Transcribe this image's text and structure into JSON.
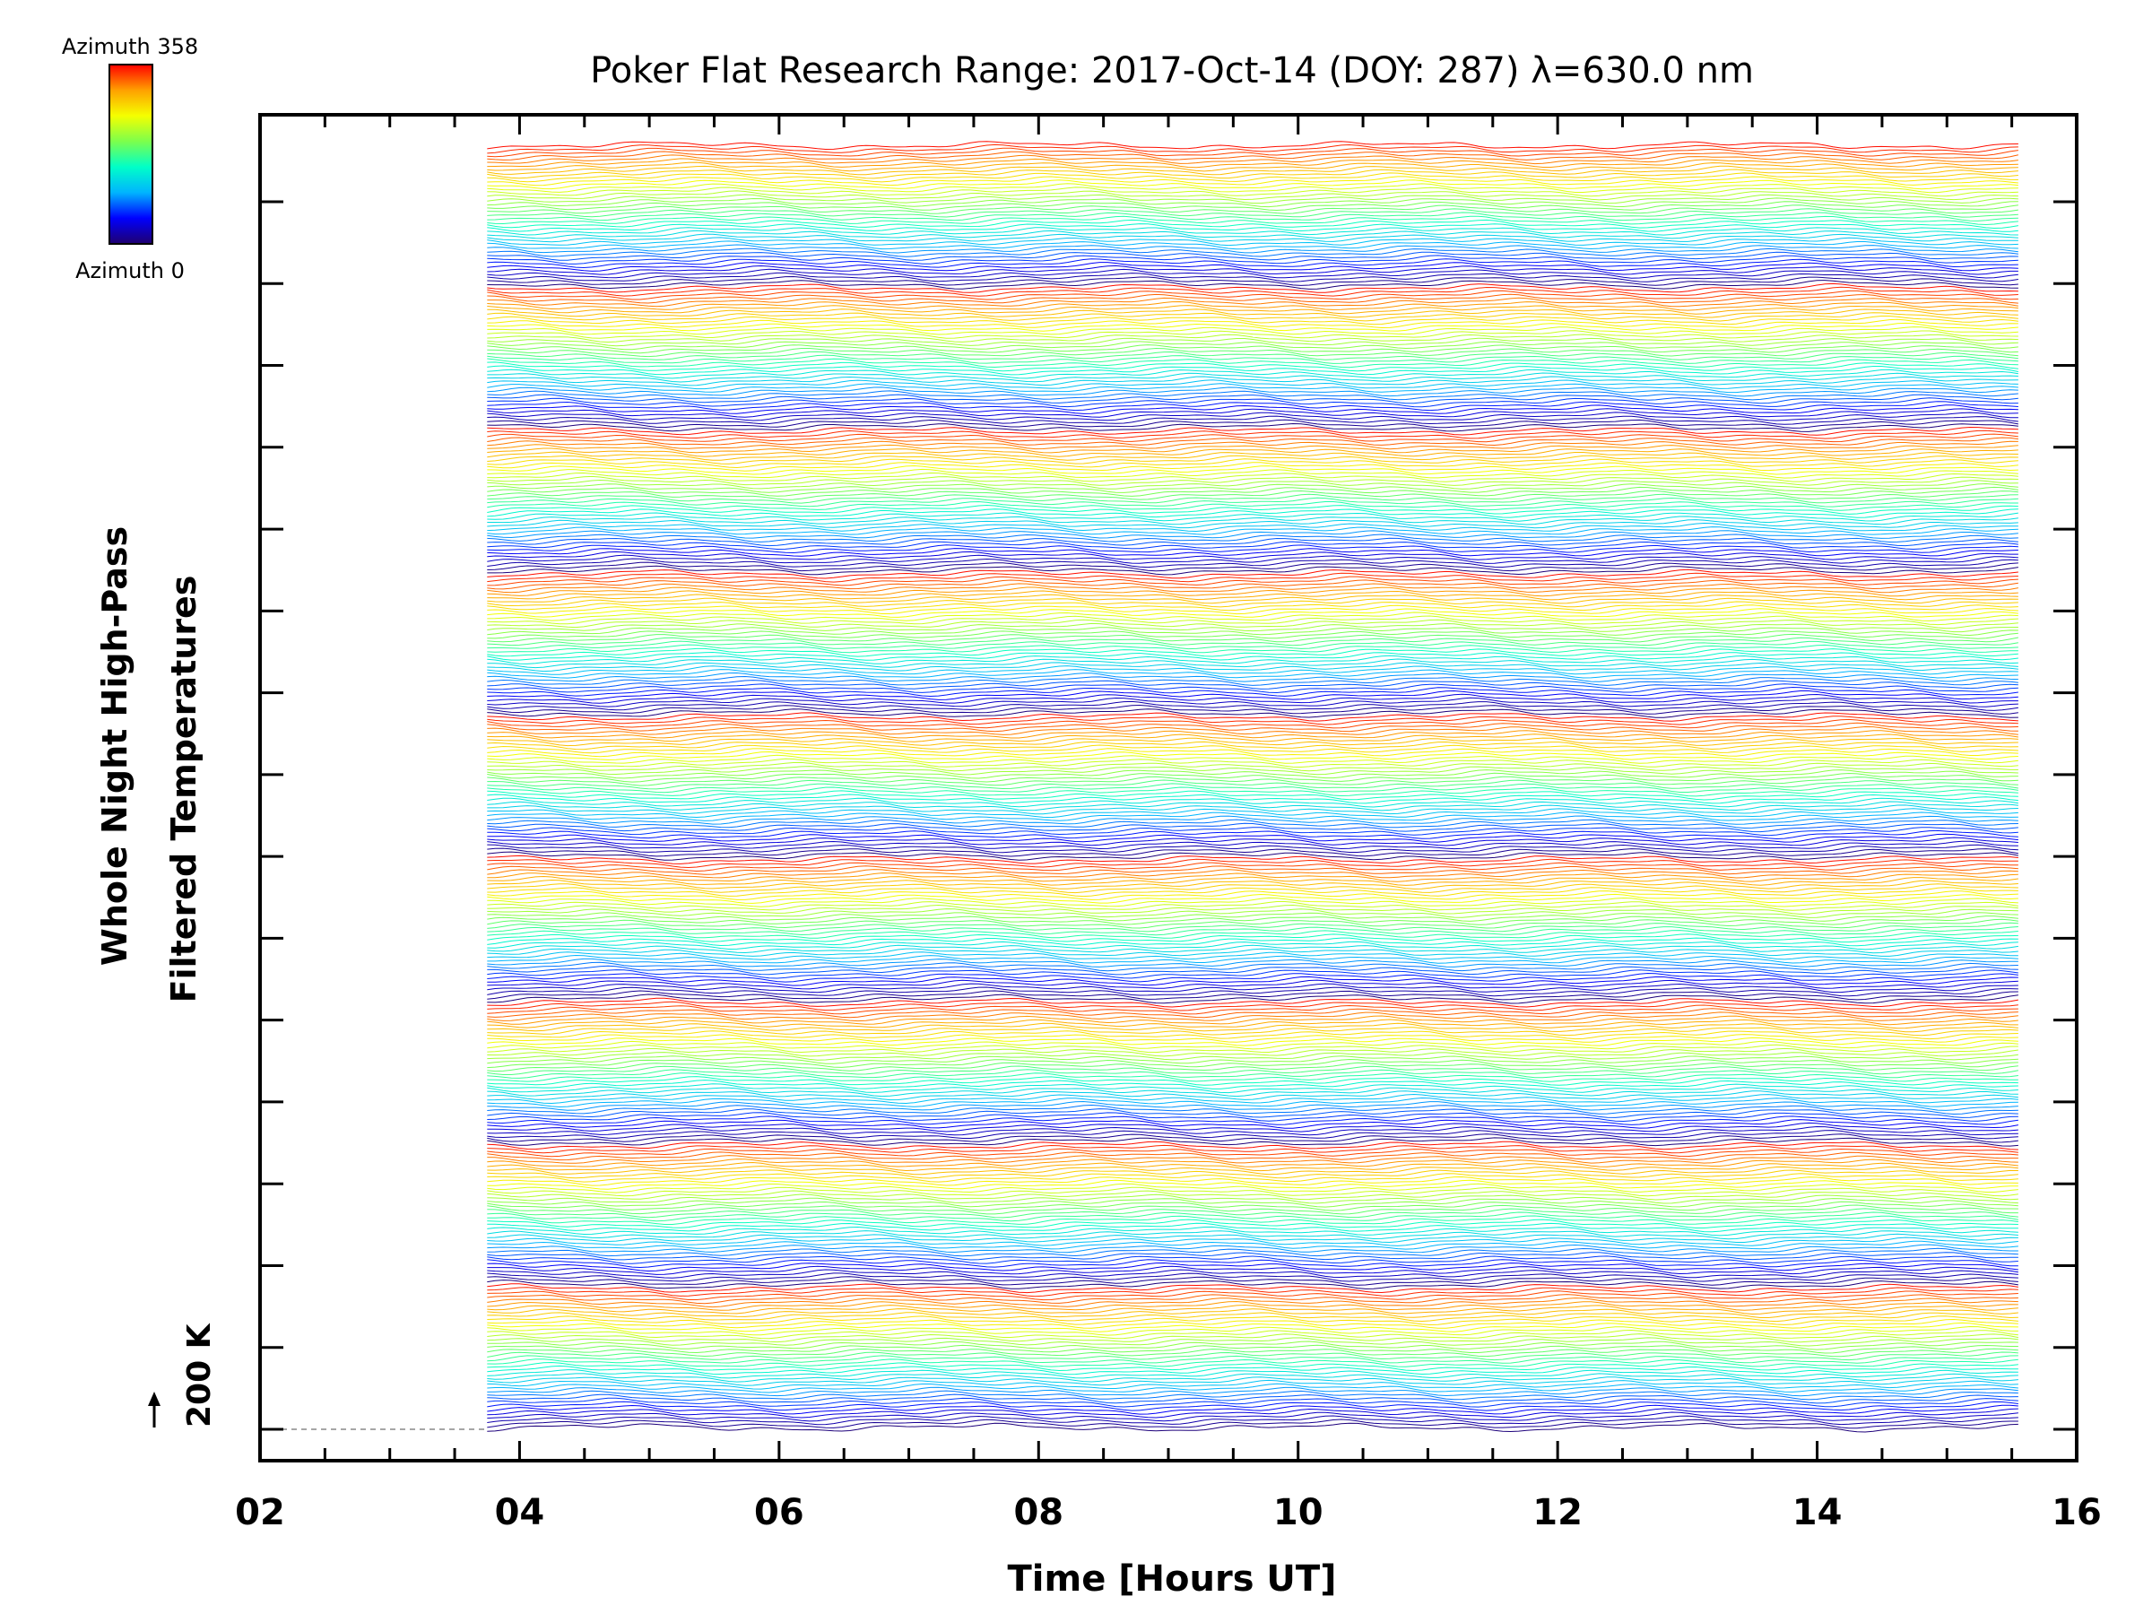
{
  "colorbar": {
    "top_label": "Azimuth 358",
    "bottom_label": "Azimuth 0",
    "colors": [
      "#20006e",
      "#0000ff",
      "#00b4ff",
      "#00ffc8",
      "#7cff4c",
      "#f5ff00",
      "#ffa000",
      "#ff0000"
    ]
  },
  "chart_data": {
    "type": "line",
    "title": "Poker Flat Research Range: 2017-Oct-14 (DOY: 287) λ=630.0 nm",
    "xlabel": "Time [Hours UT]",
    "ylabel_line1": "Whole Night High-Pass",
    "ylabel_line2": "Filtered Temperatures",
    "scale_label": "200 K",
    "xlim": [
      2,
      16
    ],
    "xticks": [
      "02",
      "04",
      "06",
      "08",
      "10",
      "12",
      "14",
      "16"
    ],
    "data_time_range": [
      3.75,
      15.55
    ],
    "n_azimuth_traces": 360,
    "azimuth_range": [
      0,
      358
    ],
    "grid": false,
    "legend": "colorbar top-left"
  }
}
